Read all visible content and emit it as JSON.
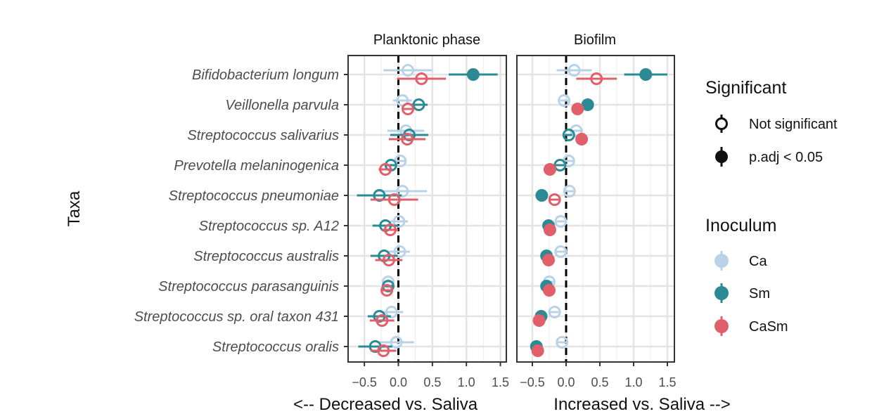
{
  "chart_data": {
    "type": "dot-range",
    "facets": [
      "Planktonic phase",
      "Biofilm"
    ],
    "y_title": "Taxa",
    "x_title_left": "<-- Decreased vs. Saliva",
    "x_title_right": "Increased vs. Saliva -->",
    "xlim": [
      -0.75,
      1.6
    ],
    "x_ticks": [
      -0.5,
      0.0,
      0.5,
      1.0,
      1.5
    ],
    "x_tick_labels": [
      "−0.5",
      "0.0",
      "0.5",
      "1.0",
      "1.5"
    ],
    "taxa": [
      "Bifidobacterium longum",
      "Veillonella parvula",
      "Streptococcus salivarius",
      "Prevotella melaninogenica",
      "Streptococcus pneumoniae",
      "Streptococcus sp. A12",
      "Streptococcus australis",
      "Streptococcus parasanguinis",
      "Streptococcus sp. oral taxon 431",
      "Streptococcus oralis"
    ],
    "series": [
      {
        "name": "Ca",
        "color": "#b8d3e8",
        "planktonic": {
          "est": [
            0.14,
            0.06,
            0.11,
            0.03,
            0.06,
            0.01,
            0.02,
            -0.15,
            -0.1,
            -0.03
          ],
          "lo": [
            -0.22,
            -0.08,
            -0.16,
            -0.04,
            -0.33,
            -0.12,
            -0.14,
            -0.2,
            -0.27,
            -0.29
          ],
          "hi": [
            0.5,
            0.2,
            0.38,
            0.1,
            0.42,
            0.14,
            0.17,
            -0.1,
            0.07,
            0.23
          ],
          "sig": [
            false,
            false,
            false,
            false,
            false,
            false,
            false,
            false,
            false,
            false
          ]
        },
        "biofilm": {
          "est": [
            0.12,
            -0.03,
            0.15,
            0.04,
            0.05,
            -0.08,
            -0.08,
            -0.25,
            -0.17,
            -0.06
          ],
          "lo": [
            -0.14,
            -0.09,
            0.05,
            -0.03,
            -0.03,
            -0.14,
            -0.15,
            -0.31,
            -0.25,
            -0.14
          ],
          "hi": [
            0.38,
            0.03,
            0.25,
            0.11,
            0.13,
            -0.02,
            -0.01,
            -0.19,
            -0.09,
            0.02
          ],
          "sig": [
            false,
            false,
            false,
            false,
            false,
            false,
            false,
            false,
            false,
            false
          ]
        }
      },
      {
        "name": "Sm",
        "color": "#2b8a94",
        "planktonic": {
          "est": [
            1.1,
            0.3,
            0.16,
            -0.11,
            -0.28,
            -0.19,
            -0.21,
            -0.15,
            -0.28,
            -0.34
          ],
          "lo": [
            0.74,
            0.17,
            -0.12,
            -0.19,
            -0.61,
            -0.38,
            -0.41,
            -0.22,
            -0.45,
            -0.59
          ],
          "hi": [
            1.46,
            0.43,
            0.44,
            -0.03,
            0.05,
            0.0,
            -0.01,
            -0.08,
            -0.11,
            -0.09
          ],
          "sig": [
            true,
            false,
            false,
            false,
            false,
            false,
            false,
            false,
            false,
            false
          ]
        },
        "biofilm": {
          "est": [
            1.18,
            0.32,
            0.04,
            -0.09,
            -0.36,
            -0.26,
            -0.29,
            -0.29,
            -0.37,
            -0.44
          ],
          "lo": [
            0.86,
            0.26,
            -0.01,
            -0.15,
            -0.43,
            -0.32,
            -0.36,
            -0.35,
            -0.45,
            -0.52
          ],
          "hi": [
            1.5,
            0.38,
            0.09,
            -0.03,
            -0.29,
            -0.2,
            -0.22,
            -0.23,
            -0.29,
            -0.36
          ],
          "sig": [
            true,
            true,
            false,
            false,
            true,
            true,
            true,
            true,
            true,
            true
          ]
        }
      },
      {
        "name": "CaSm",
        "color": "#e05f6b",
        "planktonic": {
          "est": [
            0.34,
            0.14,
            0.13,
            -0.19,
            -0.06,
            -0.12,
            -0.14,
            -0.17,
            -0.24,
            -0.22
          ],
          "lo": [
            -0.02,
            0.05,
            -0.14,
            -0.29,
            -0.41,
            -0.24,
            -0.34,
            -0.24,
            -0.42,
            -0.41
          ],
          "hi": [
            0.7,
            0.23,
            0.4,
            -0.09,
            0.29,
            0.0,
            0.06,
            -0.1,
            -0.06,
            -0.03
          ],
          "sig": [
            false,
            false,
            false,
            false,
            false,
            false,
            false,
            false,
            false,
            false
          ]
        },
        "biofilm": {
          "est": [
            0.45,
            0.17,
            0.23,
            -0.24,
            -0.17,
            -0.24,
            -0.26,
            -0.25,
            -0.4,
            -0.42
          ],
          "lo": [
            0.15,
            0.11,
            0.18,
            -0.3,
            -0.25,
            -0.3,
            -0.33,
            -0.31,
            -0.48,
            -0.5
          ],
          "hi": [
            0.75,
            0.23,
            0.28,
            -0.18,
            -0.09,
            -0.18,
            -0.19,
            -0.19,
            -0.32,
            -0.34
          ],
          "sig": [
            false,
            true,
            true,
            true,
            false,
            true,
            true,
            true,
            true,
            true
          ]
        }
      }
    ],
    "legend": {
      "significant_title": "Significant",
      "significant_items": [
        "Not significant",
        "p.adj < 0.05"
      ],
      "inoculum_title": "Inoculum",
      "inoculum_items": [
        "Ca",
        "Sm",
        "CaSm"
      ],
      "position": "right"
    },
    "grid": true,
    "reference_line": 0
  }
}
